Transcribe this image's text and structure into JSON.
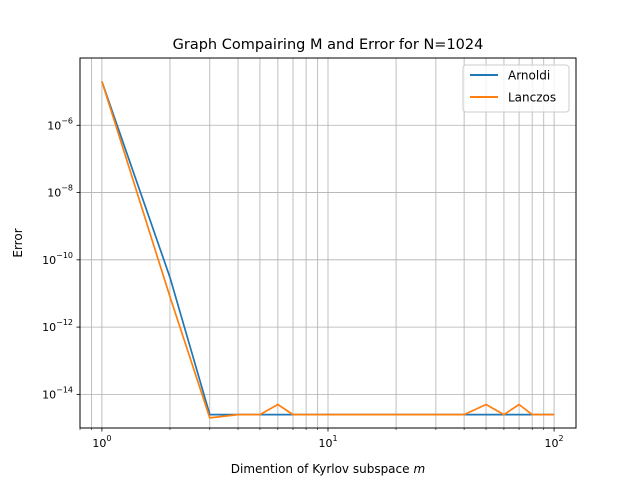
{
  "chart_data": {
    "type": "line",
    "title": "Graph Compairing M and Error for N=1024",
    "xlabel": "Dimention of Kyrlov subspace",
    "xlabel_var": "m",
    "ylabel": "Error",
    "xscale": "log",
    "yscale": "log",
    "xlim": [
      0.8,
      125
    ],
    "ylim": [
      1e-15,
      0.0001
    ],
    "grid": "major and minor on x, major on y",
    "legend_position": "top-right",
    "x_ticks": [
      {
        "value": 1,
        "base": "10",
        "exp": "0"
      },
      {
        "value": 10,
        "base": "10",
        "exp": "1"
      },
      {
        "value": 100,
        "base": "10",
        "exp": "2"
      }
    ],
    "y_ticks": [
      {
        "value": 1e-06,
        "base": "10",
        "exp": "−6"
      },
      {
        "value": 1e-08,
        "base": "10",
        "exp": "−8"
      },
      {
        "value": 1e-10,
        "base": "10",
        "exp": "−10"
      },
      {
        "value": 1e-12,
        "base": "10",
        "exp": "−12"
      },
      {
        "value": 1e-14,
        "base": "10",
        "exp": "−14"
      }
    ],
    "series": [
      {
        "name": "Arnoldi",
        "color": "#1f77b4",
        "x": [
          1,
          2,
          3,
          4,
          5,
          6,
          7,
          8,
          10,
          20,
          30,
          40,
          50,
          60,
          70,
          80,
          90,
          100
        ],
        "y": [
          2e-05,
          3e-11,
          2.5e-15,
          2.5e-15,
          2.5e-15,
          2.5e-15,
          2.5e-15,
          2.5e-15,
          2.5e-15,
          2.5e-15,
          2.5e-15,
          2.5e-15,
          2.5e-15,
          2.5e-15,
          2.5e-15,
          2.5e-15,
          2.5e-15,
          2.5e-15
        ]
      },
      {
        "name": "Lanczos",
        "color": "#ff7f0e",
        "x": [
          1,
          2,
          3,
          4,
          5,
          6,
          7,
          8,
          10,
          20,
          30,
          40,
          50,
          60,
          70,
          80,
          90,
          100
        ],
        "y": [
          2e-05,
          8e-12,
          2e-15,
          2.5e-15,
          2.5e-15,
          5e-15,
          2.5e-15,
          2.5e-15,
          2.5e-15,
          2.5e-15,
          2.5e-15,
          2.5e-15,
          5e-15,
          2.5e-15,
          5e-15,
          2.5e-15,
          2.5e-15,
          2.5e-15
        ]
      }
    ]
  }
}
